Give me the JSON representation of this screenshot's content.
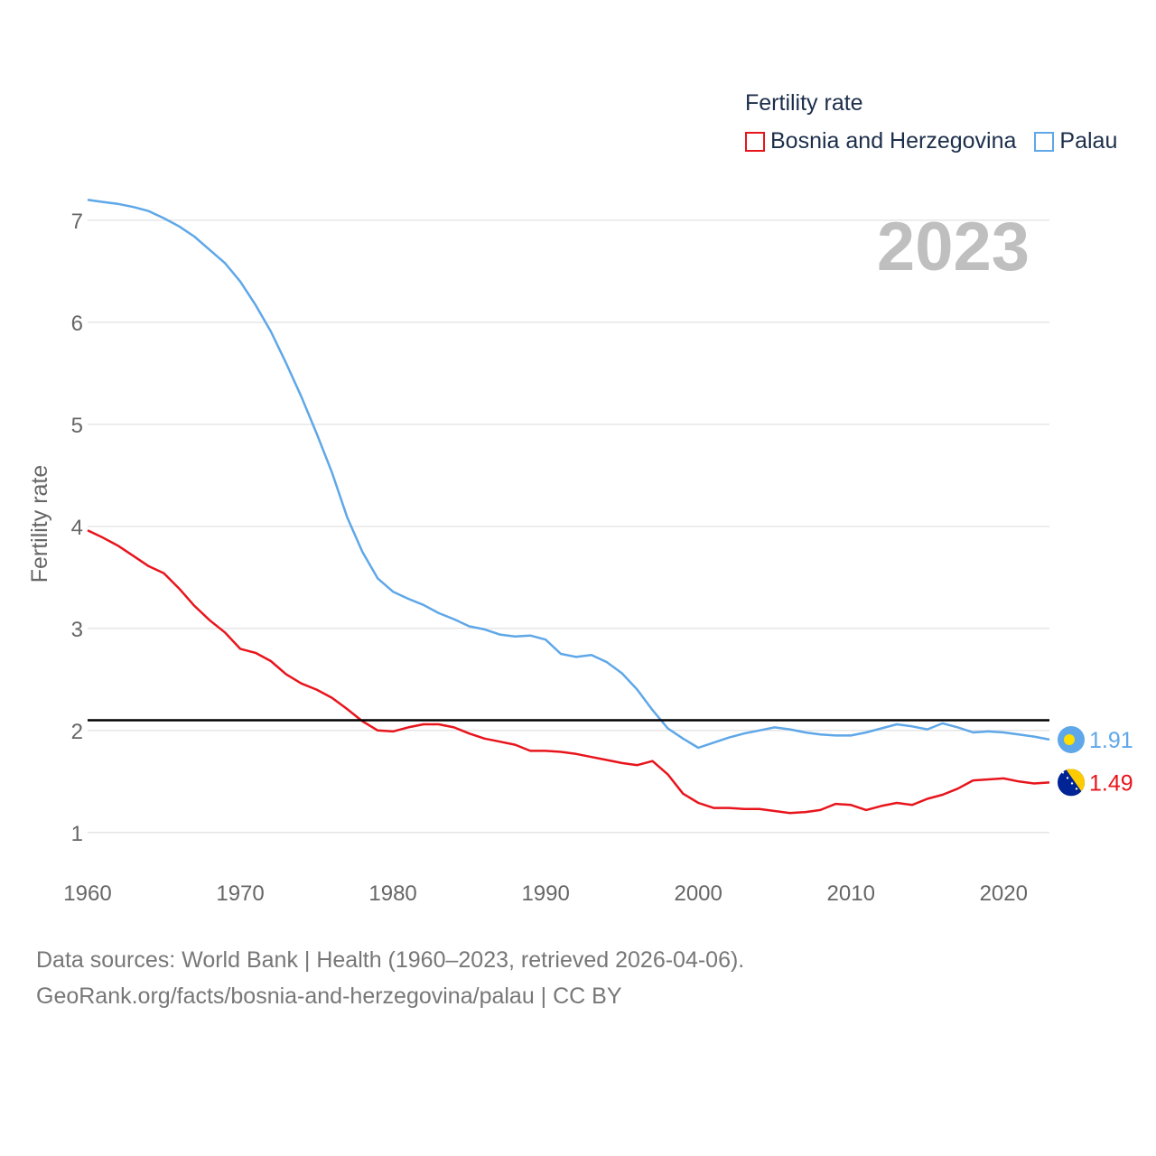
{
  "legend": {
    "title": "Fertility rate",
    "items": [
      {
        "label": "Bosnia and Herzegovina",
        "color": "#e8141c"
      },
      {
        "label": "Palau",
        "color": "#5ea7e8"
      }
    ]
  },
  "footer": {
    "line1": "Data sources: World Bank | Health (1960–2023, retrieved 2026-04-06).",
    "line2": "GeoRank.org/facts/bosnia-and-herzegovina/palau | CC BY"
  },
  "chart_data": {
    "type": "line",
    "title": "Fertility rate",
    "year_label": "2023",
    "xlabel": "",
    "ylabel": "Fertility rate",
    "xlim": [
      1960,
      2023
    ],
    "ylim": [
      0.75,
      7.3
    ],
    "x_ticks": [
      1960,
      1970,
      1980,
      1990,
      2000,
      2010,
      2020
    ],
    "y_ticks": [
      1,
      2,
      3,
      4,
      5,
      6,
      7
    ],
    "reference_line": {
      "y": 2.1,
      "label": "",
      "color": "#000000"
    },
    "x": [
      1960,
      1961,
      1962,
      1963,
      1964,
      1965,
      1966,
      1967,
      1968,
      1969,
      1970,
      1971,
      1972,
      1973,
      1974,
      1975,
      1976,
      1977,
      1978,
      1979,
      1980,
      1981,
      1982,
      1983,
      1984,
      1985,
      1986,
      1987,
      1988,
      1989,
      1990,
      1991,
      1992,
      1993,
      1994,
      1995,
      1996,
      1997,
      1998,
      1999,
      2000,
      2001,
      2002,
      2003,
      2004,
      2005,
      2006,
      2007,
      2008,
      2009,
      2010,
      2011,
      2012,
      2013,
      2014,
      2015,
      2016,
      2017,
      2018,
      2019,
      2020,
      2021,
      2022,
      2023
    ],
    "series": [
      {
        "name": "Bosnia and Herzegovina",
        "color": "#e8141c",
        "end_label": "1.49",
        "values": [
          3.96,
          3.89,
          3.81,
          3.71,
          3.61,
          3.54,
          3.39,
          3.22,
          3.08,
          2.96,
          2.8,
          2.76,
          2.68,
          2.55,
          2.46,
          2.4,
          2.32,
          2.21,
          2.09,
          2.0,
          1.99,
          2.03,
          2.06,
          2.06,
          2.03,
          1.97,
          1.92,
          1.89,
          1.86,
          1.8,
          1.8,
          1.79,
          1.77,
          1.74,
          1.71,
          1.68,
          1.66,
          1.7,
          1.57,
          1.38,
          1.29,
          1.24,
          1.24,
          1.23,
          1.23,
          1.21,
          1.19,
          1.2,
          1.22,
          1.28,
          1.27,
          1.22,
          1.26,
          1.29,
          1.27,
          1.33,
          1.37,
          1.43,
          1.51,
          1.52,
          1.53,
          1.5,
          1.48,
          1.49
        ]
      },
      {
        "name": "Palau",
        "color": "#5ea7e8",
        "end_label": "1.91",
        "values": [
          7.2,
          7.18,
          7.16,
          7.13,
          7.09,
          7.02,
          6.94,
          6.84,
          6.71,
          6.58,
          6.4,
          6.17,
          5.91,
          5.6,
          5.27,
          4.91,
          4.53,
          4.09,
          3.75,
          3.49,
          3.36,
          3.29,
          3.23,
          3.15,
          3.09,
          3.02,
          2.99,
          2.94,
          2.92,
          2.93,
          2.89,
          2.75,
          2.72,
          2.74,
          2.67,
          2.56,
          2.4,
          2.2,
          2.02,
          1.92,
          1.83,
          1.88,
          1.93,
          1.97,
          2.0,
          2.03,
          2.01,
          1.98,
          1.96,
          1.95,
          1.95,
          1.98,
          2.02,
          2.06,
          2.04,
          2.01,
          2.07,
          2.03,
          1.98,
          1.99,
          1.98,
          1.96,
          1.94,
          1.91
        ]
      }
    ]
  }
}
